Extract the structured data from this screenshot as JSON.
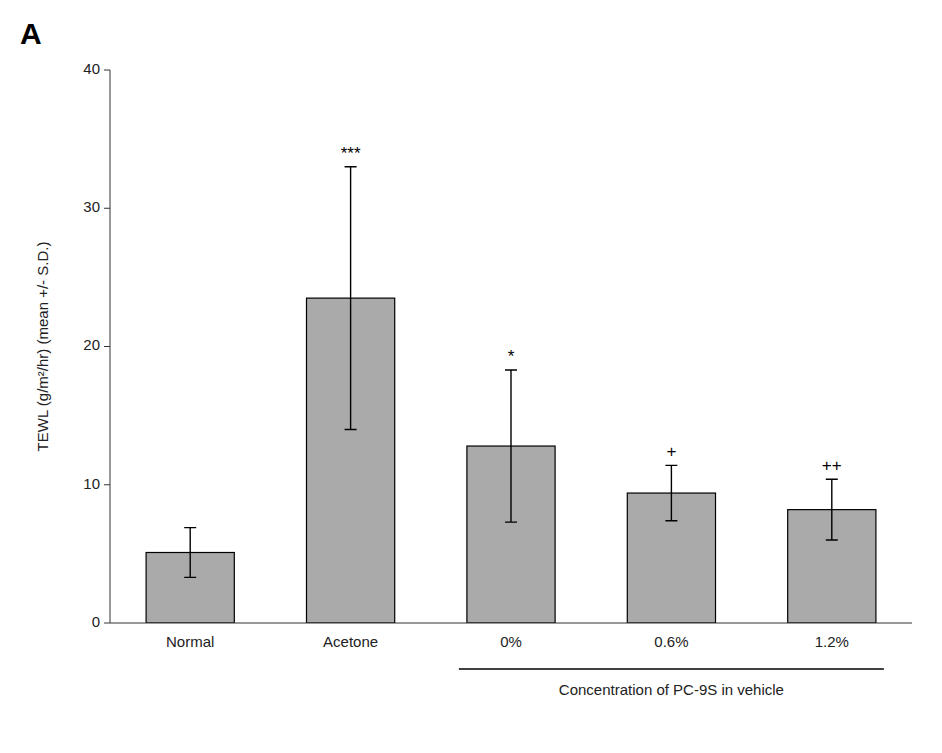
{
  "chart_data": {
    "type": "bar",
    "title": "A",
    "categories": [
      "Normal",
      "Acetone",
      "0%",
      "0.6%",
      "1.2%"
    ],
    "values": [
      5.1,
      23.5,
      12.8,
      9.4,
      8.2
    ],
    "errors": [
      1.8,
      9.5,
      5.5,
      2.0,
      2.2
    ],
    "color": "#aaaaaa",
    "ylabel": "TEWL (g/m²/hr) (mean +/- S.D.)",
    "xlabel": "Concentration of PC-9S in vehicle",
    "ylim": [
      0,
      40
    ],
    "yticks": [
      0,
      10,
      20,
      30,
      40
    ],
    "grid": false,
    "annotations": [
      {
        "category": "Acetone",
        "text": "***"
      },
      {
        "category": "0%",
        "text": "*"
      },
      {
        "category": "0.6%",
        "text": "+"
      },
      {
        "category": "1.2%",
        "text": "++"
      }
    ]
  }
}
